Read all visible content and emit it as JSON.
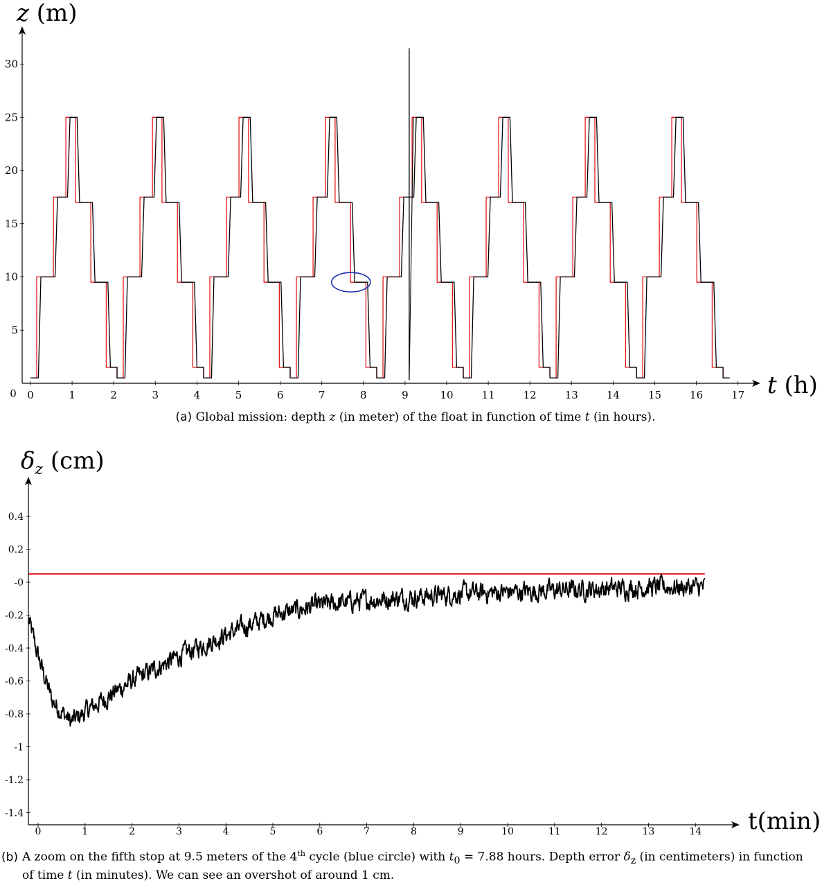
{
  "chart_data": [
    {
      "type": "line",
      "panel": "a",
      "ylabel": "z (m)",
      "xlabel": "t (h)",
      "origin_label": "0",
      "xticks": [
        "0",
        "1",
        "2",
        "3",
        "4",
        "5",
        "6",
        "7",
        "8",
        "9",
        "10",
        "11",
        "12",
        "13",
        "14",
        "15",
        "16",
        "17"
      ],
      "yticks": [
        "5",
        "10",
        "15",
        "20",
        "25",
        "30"
      ],
      "xlim": [
        -0.2,
        17.8
      ],
      "ylim": [
        0,
        33
      ],
      "cycle_start_hours": [
        0,
        2.08,
        4.16,
        6.24,
        8.32,
        10.4,
        12.48,
        14.56
      ],
      "profile": {
        "setpoint_times": [
          0.15,
          0.55,
          0.85,
          1.08,
          1.45,
          1.82
        ],
        "setpoint_depths": [
          0.5,
          10.0,
          17.5,
          25.0,
          17.0,
          9.5,
          1.5,
          0.5
        ],
        "description_of_stops": [
          0.5,
          10.0,
          17.5,
          25.0,
          17.0,
          9.5,
          1.5
        ]
      },
      "series": [
        {
          "name": "",
          "role": "setpoint",
          "color": "#e31a1c"
        },
        {
          "name": "",
          "role": "measured",
          "color": "#000000"
        }
      ],
      "spike": {
        "t": 9.1,
        "z_min": 0.3,
        "z_max": 31.5
      },
      "highlight_ellipse": {
        "t_center": 7.7,
        "z_center": 9.5,
        "color": "#1c2fb5"
      }
    },
    {
      "type": "line",
      "panel": "b",
      "ylabel": "δz (cm)",
      "xlabel": "t(min)",
      "xticks": [
        "0",
        "1",
        "2",
        "3",
        "4",
        "5",
        "6",
        "7",
        "8",
        "9",
        "10",
        "11",
        "12",
        "13",
        "14"
      ],
      "yticks": [
        "0.4",
        "0.2",
        "-0",
        "-0.2",
        "-0.4",
        "-0.6",
        "-0.8",
        "-1",
        "-1.2",
        "-1.4"
      ],
      "xlim": [
        -0.2,
        15.0
      ],
      "ylim": [
        -1.45,
        0.55
      ],
      "reference_line": {
        "y": 0.05,
        "x_range": [
          -0.2,
          14.2
        ],
        "color": "#e31a1c"
      },
      "series": [
        {
          "name": "",
          "color": "#000000",
          "envelope_t": [
            -0.2,
            0.0,
            0.3,
            0.7,
            1.2,
            2.0,
            3.0,
            4.0,
            5.0,
            6.0,
            7.0,
            8.0,
            9.0,
            10.0,
            11.0,
            12.0,
            13.0,
            14.2
          ],
          "envelope_mean": [
            -0.23,
            -0.45,
            -0.72,
            -0.85,
            -0.75,
            -0.6,
            -0.45,
            -0.32,
            -0.2,
            -0.14,
            -0.11,
            -0.09,
            -0.07,
            -0.06,
            -0.05,
            -0.04,
            -0.03,
            -0.03
          ],
          "noise_amplitude": 0.06
        }
      ]
    }
  ],
  "captions": {
    "a": {
      "tag": "(a)",
      "text_before_z": "Global mission: depth",
      "z_symbol": "z",
      "text_mid": "(in meter) of the float in function of time",
      "t_symbol": "t",
      "text_end": "(in hours)."
    },
    "b": {
      "tag": "(b)",
      "line1_part1": "A zoom on the fifth stop at 9.5 meters of the 4",
      "line1_sup": "th",
      "line1_part2": " cycle (blue circle) with ",
      "t0_symbol": "t",
      "t0_sub": "0",
      "line1_part3": " = 7.88 hours. Depth error ",
      "delta_symbol": "δ",
      "delta_sub": "z",
      "line1_part4": " (in centimeters) in function",
      "line2_part1": "of time ",
      "line2_t": "t",
      "line2_part2": " (in minutes). We can see an overshot of around 1 cm."
    }
  }
}
